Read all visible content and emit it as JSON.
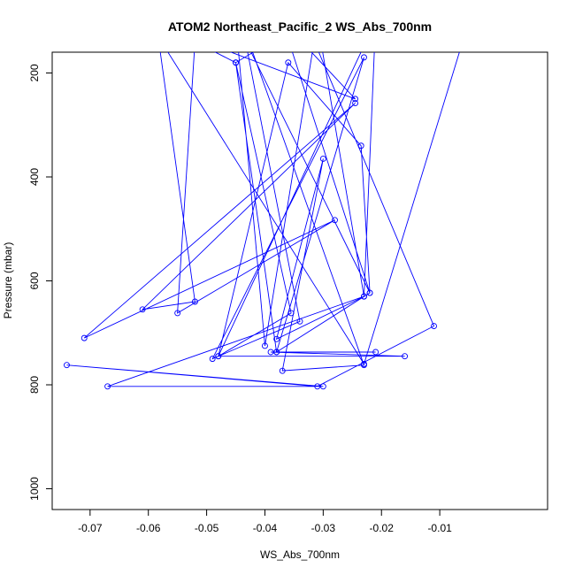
{
  "chart_data": {
    "type": "line",
    "title": "ATOM2 Northeast_Pacific_2 WS_Abs_700nm",
    "xlabel": "WS_Abs_700nm",
    "ylabel": "Pressure (mbar)",
    "xlim": [
      -0.0765,
      0.0085
    ],
    "ylim": [
      1040,
      160
    ],
    "y_axis_reversed": true,
    "grid": false,
    "legend": "none",
    "x_ticks": [
      {
        "value": -0.07,
        "label": "-0.07"
      },
      {
        "value": -0.06,
        "label": "-0.06"
      },
      {
        "value": -0.05,
        "label": "-0.05"
      },
      {
        "value": -0.04,
        "label": "-0.04"
      },
      {
        "value": -0.03,
        "label": "-0.03"
      },
      {
        "value": -0.02,
        "label": "-0.02"
      },
      {
        "value": -0.01,
        "label": "-0.01"
      }
    ],
    "y_ticks": [
      {
        "value": 200,
        "label": "200"
      },
      {
        "value": 400,
        "label": "400"
      },
      {
        "value": 600,
        "label": "600"
      },
      {
        "value": 800,
        "label": "800"
      },
      {
        "value": 1000,
        "label": "1000"
      }
    ],
    "series": [
      {
        "color": "#0000ff",
        "marker": "open-circle",
        "points": [
          [
            -0.0587,
            100
          ],
          [
            -0.052,
            640
          ],
          [
            -0.061,
            655
          ],
          [
            -0.0245,
            258
          ],
          [
            -0.071,
            710
          ],
          [
            -0.028,
            483
          ],
          [
            -0.055,
            662
          ],
          [
            -0.052,
            140
          ],
          [
            -0.045,
            180
          ],
          [
            -0.0355,
            662
          ],
          [
            -0.048,
            745
          ],
          [
            -0.036,
            180
          ],
          [
            -0.0235,
            340
          ],
          [
            -0.022,
            623
          ],
          [
            -0.045,
            100
          ],
          [
            -0.04,
            725
          ],
          [
            -0.031,
            100
          ],
          [
            -0.023,
            630
          ],
          [
            -0.038,
            712
          ],
          [
            -0.03,
            365
          ],
          [
            -0.037,
            773
          ],
          [
            -0.023,
            762
          ],
          [
            -0.044,
            100
          ],
          [
            -0.034,
            678
          ],
          [
            -0.049,
            750
          ],
          [
            -0.023,
            170
          ],
          [
            -0.038,
            737
          ],
          [
            -0.021,
            737
          ],
          [
            -0.039,
            737
          ],
          [
            -0.016,
            745
          ],
          [
            -0.048,
            745
          ],
          [
            -0.021,
            100
          ],
          [
            -0.023,
            630
          ],
          [
            -0.067,
            803
          ],
          [
            -0.03,
            803
          ],
          [
            -0.074,
            762
          ],
          [
            -0.031,
            803
          ],
          [
            -0.011,
            687
          ],
          [
            -0.033,
            100
          ],
          [
            -0.045,
            180
          ],
          [
            -0.038,
            737
          ],
          [
            -0.022,
            623
          ],
          [
            -0.037,
            100
          ],
          [
            -0.0245,
            250
          ],
          [
            -0.06,
            100
          ],
          [
            -0.023,
            760
          ],
          [
            -0.005,
            100
          ]
        ]
      }
    ]
  }
}
